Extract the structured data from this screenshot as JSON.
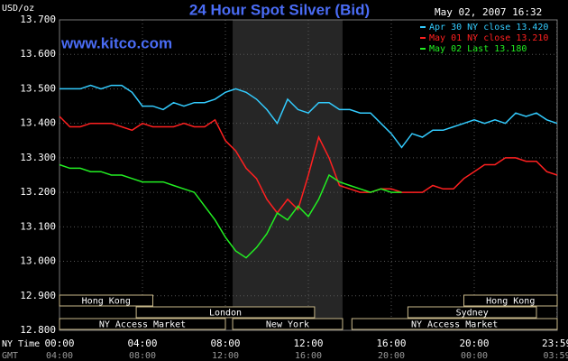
{
  "chart_data": {
    "type": "line",
    "title": "24 Hour Spot Silver (Bid)",
    "units_label": "USD/oz",
    "timestamp": "May 02, 2007 16:32",
    "watermark": "www.kitco.com",
    "x_label": "NY Time",
    "x2_label": "GMT",
    "x": [
      0,
      0.5,
      1,
      1.5,
      2,
      2.5,
      3,
      3.5,
      4,
      4.5,
      5,
      5.5,
      6,
      6.5,
      7,
      7.5,
      8,
      8.5,
      9,
      9.5,
      10,
      10.5,
      11,
      11.5,
      12,
      12.5,
      13,
      13.5,
      14,
      14.5,
      15,
      15.5,
      16,
      16.5,
      17,
      17.5,
      18,
      18.5,
      19,
      19.5,
      20,
      20.5,
      21,
      21.5,
      22,
      22.5,
      23,
      23.5,
      24
    ],
    "series": [
      {
        "name": "Apr 30 NY close 13.420",
        "color": "#33ccff",
        "values": [
          13.5,
          13.5,
          13.5,
          13.51,
          13.5,
          13.51,
          13.51,
          13.49,
          13.45,
          13.45,
          13.44,
          13.46,
          13.45,
          13.46,
          13.46,
          13.47,
          13.49,
          13.5,
          13.49,
          13.47,
          13.44,
          13.4,
          13.47,
          13.44,
          13.43,
          13.46,
          13.46,
          13.44,
          13.44,
          13.43,
          13.43,
          13.4,
          13.37,
          13.33,
          13.37,
          13.36,
          13.38,
          13.38,
          13.39,
          13.4,
          13.41,
          13.4,
          13.41,
          13.4,
          13.43,
          13.42,
          13.43,
          13.41,
          13.4
        ]
      },
      {
        "name": "May 01 NY close 13.210",
        "color": "#ff2020",
        "values": [
          13.42,
          13.39,
          13.39,
          13.4,
          13.4,
          13.4,
          13.39,
          13.38,
          13.4,
          13.39,
          13.39,
          13.39,
          13.4,
          13.39,
          13.39,
          13.41,
          13.35,
          13.32,
          13.27,
          13.24,
          13.18,
          13.14,
          13.18,
          13.15,
          13.25,
          13.36,
          13.3,
          13.22,
          13.21,
          13.2,
          13.2,
          13.21,
          13.21,
          13.2,
          13.2,
          13.2,
          13.22,
          13.21,
          13.21,
          13.24,
          13.26,
          13.28,
          13.28,
          13.3,
          13.3,
          13.29,
          13.29,
          13.26,
          13.25
        ]
      },
      {
        "name": "May 02 Last 13.180",
        "color": "#22ee22",
        "values": [
          13.28,
          13.27,
          13.27,
          13.26,
          13.26,
          13.25,
          13.25,
          13.24,
          13.23,
          13.23,
          13.23,
          13.22,
          13.21,
          13.2,
          13.16,
          13.12,
          13.07,
          13.03,
          13.01,
          13.04,
          13.08,
          13.14,
          13.12,
          13.16,
          13.13,
          13.18,
          13.25,
          13.23,
          13.22,
          13.21,
          13.2,
          13.21,
          13.2,
          13.2,
          null,
          null,
          null,
          null,
          null,
          null,
          null,
          null,
          null,
          null,
          null,
          null,
          null,
          null,
          null
        ]
      }
    ],
    "xlim": [
      0,
      24
    ],
    "ylim": [
      12.8,
      13.7
    ],
    "xticks": [
      {
        "value": 0,
        "label": "00:00"
      },
      {
        "value": 4,
        "label": "04:00"
      },
      {
        "value": 8,
        "label": "08:00"
      },
      {
        "value": 12,
        "label": "12:00"
      },
      {
        "value": 16,
        "label": "16:00"
      },
      {
        "value": 20,
        "label": "20:00"
      },
      {
        "value": 23.98,
        "label": "23:59"
      }
    ],
    "x2ticklabels": [
      "04:00",
      "08:00",
      "12:00",
      "16:00",
      "20:00",
      "00:00",
      "03:59"
    ],
    "yticks": [
      {
        "value": 12.8,
        "label": "12.800"
      },
      {
        "value": 12.9,
        "label": "12.900"
      },
      {
        "value": 13.0,
        "label": "13.000"
      },
      {
        "value": 13.1,
        "label": "13.100"
      },
      {
        "value": 13.2,
        "label": "13.200"
      },
      {
        "value": 13.3,
        "label": "13.300"
      },
      {
        "value": 13.4,
        "label": "13.400"
      },
      {
        "value": 13.5,
        "label": "13.500"
      },
      {
        "value": 13.6,
        "label": "13.600"
      },
      {
        "value": 13.7,
        "label": "13.700"
      }
    ],
    "grid": true,
    "shaded_x": [
      8.35,
      13.65
    ],
    "session_rows": [
      [
        {
          "name": "Hong Kong",
          "start": 0,
          "end": 4.5
        },
        {
          "name": "Hong Kong",
          "start": 19.5,
          "end": 24
        }
      ],
      [
        {
          "name": "London",
          "start": 3.7,
          "end": 12.3
        },
        {
          "name": "Sydney",
          "start": 16.8,
          "end": 23.0
        }
      ],
      [
        {
          "name": "NY Access Market",
          "start": 0,
          "end": 8.0
        },
        {
          "name": "New York",
          "start": 8.35,
          "end": 13.65
        },
        {
          "name": "NY Access Market",
          "start": 14.1,
          "end": 24
        }
      ]
    ]
  }
}
